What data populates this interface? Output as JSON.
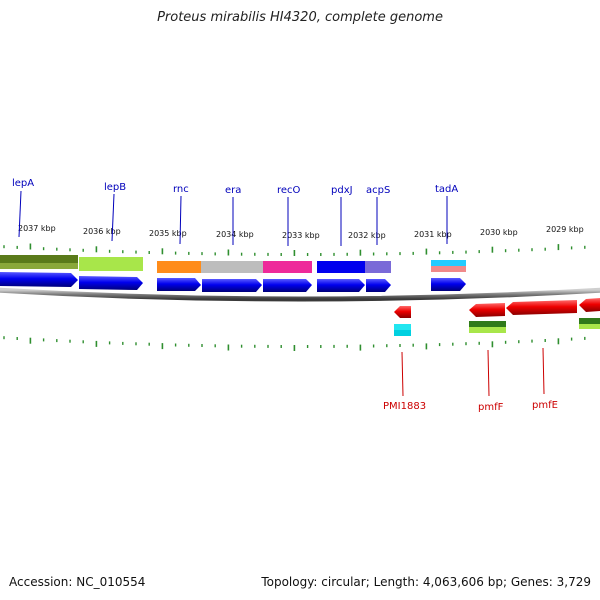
{
  "title": "Proteus mirabilis HI4320, complete genome",
  "footer": {
    "accession_label": "Accession:",
    "accession": "NC_010554",
    "topology_label": "Topology:",
    "topology": "circular",
    "length_label": "Length:",
    "length": "4,063,606 bp",
    "genes_label": "Genes:",
    "genes": "3,729"
  },
  "colors": {
    "forward_cds": "#0000ee",
    "reverse_cds": "#ee0000",
    "forward_label": "#0000bb",
    "reverse_label": "#cc0000",
    "backbone": "#888888",
    "tick": "#2f8f2f"
  },
  "ruler": [
    {
      "label": "2037 kbp"
    },
    {
      "label": "2036 kbp"
    },
    {
      "label": "2035 kbp"
    },
    {
      "label": "2034 kbp"
    },
    {
      "label": "2033 kbp"
    },
    {
      "label": "2032 kbp"
    },
    {
      "label": "2031 kbp"
    },
    {
      "label": "2030 kbp"
    },
    {
      "label": "2029 kbp"
    }
  ],
  "forward_genes": [
    {
      "name": "lepA"
    },
    {
      "name": "lepB"
    },
    {
      "name": "rnc"
    },
    {
      "name": "era"
    },
    {
      "name": "recO"
    },
    {
      "name": "pdxJ"
    },
    {
      "name": "acpS"
    },
    {
      "name": "tadA"
    }
  ],
  "reverse_genes": [
    {
      "name": "PMI1883"
    },
    {
      "name": "pmfF"
    },
    {
      "name": "pmfE"
    }
  ]
}
